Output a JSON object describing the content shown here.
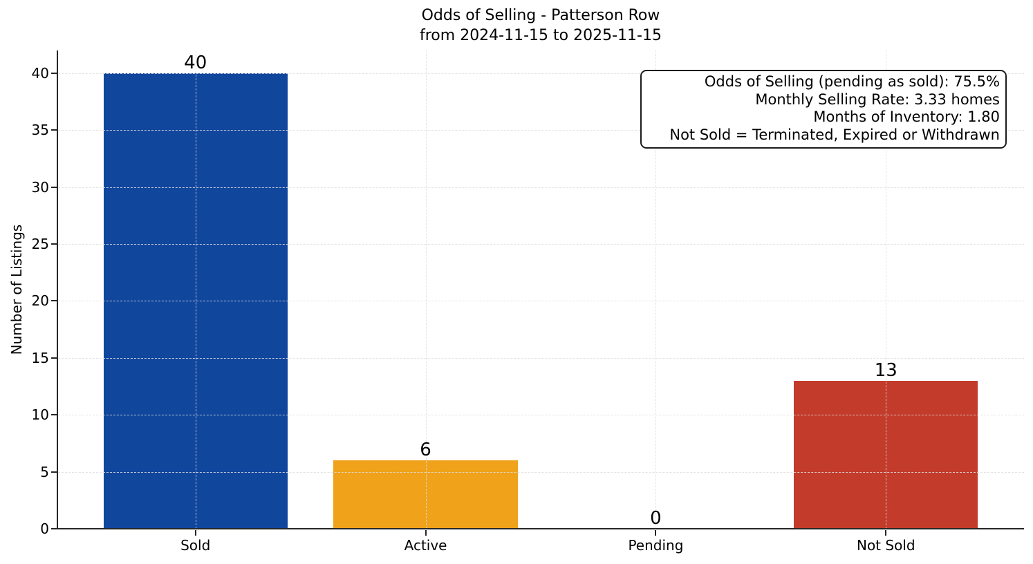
{
  "chart_data": {
    "type": "bar",
    "title": "Odds of Selling - Patterson Row",
    "subtitle": "from 2024-11-15 to 2025-11-15",
    "categories": [
      "Sold",
      "Active",
      "Pending",
      "Not Sold"
    ],
    "values": [
      40,
      6,
      0,
      13
    ],
    "value_labels": [
      "40",
      "6",
      "0",
      "13"
    ],
    "bar_colors": [
      "#11469d",
      "#f0a21a",
      "#808080",
      "#c33b2b"
    ],
    "xlabel": "",
    "ylabel": "Number of Listings",
    "yticks": [
      0,
      5,
      10,
      15,
      20,
      25,
      30,
      35,
      40
    ],
    "ylim": [
      0,
      42
    ],
    "grid": true,
    "grid_style": "dashed",
    "legend": "none",
    "axis_color": "#262626",
    "background": "#ffffff"
  },
  "annotation": {
    "lines": [
      "Odds of Selling (pending as sold): 75.5%",
      "Monthly Selling Rate: 3.33 homes",
      "Months of Inventory: 1.80",
      "Not Sold = Terminated, Expired or Withdrawn"
    ]
  }
}
